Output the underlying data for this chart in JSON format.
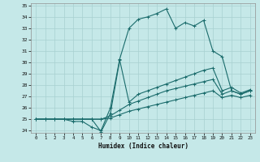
{
  "xlabel": "Humidex (Indice chaleur)",
  "bg_color": "#c5e8e8",
  "line_color": "#1a6b6b",
  "grid_color": "#a8d0d0",
  "xlim": [
    -0.5,
    23.5
  ],
  "ylim": [
    23.8,
    35.2
  ],
  "xticks": [
    0,
    1,
    2,
    3,
    4,
    5,
    6,
    7,
    8,
    9,
    10,
    11,
    12,
    13,
    14,
    15,
    16,
    17,
    18,
    19,
    20,
    21,
    22,
    23
  ],
  "yticks": [
    24,
    25,
    26,
    27,
    28,
    29,
    30,
    31,
    32,
    33,
    34,
    35
  ],
  "lines": [
    {
      "x": [
        0,
        1,
        2,
        3,
        4,
        5,
        6,
        7,
        8,
        9,
        10,
        11,
        12,
        13,
        14,
        15,
        16,
        17,
        18,
        19,
        20,
        21,
        22,
        23
      ],
      "y": [
        25,
        25,
        25,
        25,
        24.8,
        24.8,
        24.3,
        24.0,
        26.0,
        30.3,
        33.0,
        33.8,
        34.0,
        34.3,
        34.7,
        33.0,
        33.5,
        33.2,
        33.7,
        31.0,
        30.5,
        27.5,
        27.2,
        27.5
      ]
    },
    {
      "x": [
        0,
        1,
        2,
        3,
        4,
        5,
        6,
        7,
        8,
        9,
        10,
        11,
        12,
        13,
        14,
        15,
        16,
        17,
        18,
        19,
        20,
        21,
        22,
        23
      ],
      "y": [
        25,
        25,
        25,
        25,
        25,
        25,
        25,
        23.9,
        25.5,
        30.2,
        26.5,
        27.2,
        27.5,
        27.8,
        28.1,
        28.4,
        28.7,
        29.0,
        29.3,
        29.5,
        27.5,
        27.8,
        27.3,
        27.6
      ]
    },
    {
      "x": [
        0,
        1,
        2,
        3,
        4,
        5,
        6,
        7,
        8,
        9,
        10,
        11,
        12,
        13,
        14,
        15,
        16,
        17,
        18,
        19,
        20,
        21,
        22,
        23
      ],
      "y": [
        25,
        25,
        25,
        25,
        25,
        25,
        25,
        25,
        25.3,
        25.8,
        26.3,
        26.6,
        26.9,
        27.2,
        27.5,
        27.7,
        27.9,
        28.1,
        28.3,
        28.5,
        27.2,
        27.5,
        27.2,
        27.5
      ]
    },
    {
      "x": [
        0,
        1,
        2,
        3,
        4,
        5,
        6,
        7,
        8,
        9,
        10,
        11,
        12,
        13,
        14,
        15,
        16,
        17,
        18,
        19,
        20,
        21,
        22,
        23
      ],
      "y": [
        25,
        25,
        25,
        25,
        25,
        25,
        25,
        25,
        25.1,
        25.4,
        25.7,
        25.9,
        26.1,
        26.3,
        26.5,
        26.7,
        26.9,
        27.1,
        27.3,
        27.5,
        26.9,
        27.1,
        26.9,
        27.1
      ]
    }
  ]
}
